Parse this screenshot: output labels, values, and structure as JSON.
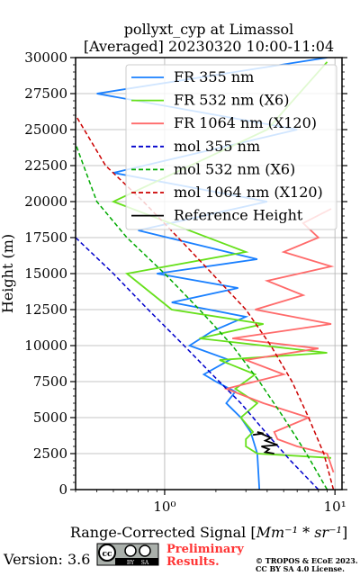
{
  "chart_data": {
    "type": "line",
    "title": "pollyxt_cyp at Limassol",
    "subtitle": "[Averaged] 20230320 10:00-11:04",
    "xlabel_prefix": "Range-Corrected Signal [",
    "xlabel_math": "Mm⁻¹ * sr⁻¹",
    "xlabel_suffix": "]",
    "ylabel": "Height (m)",
    "xscale": "log",
    "xlim": [
      0.3,
      11
    ],
    "ylim": [
      0,
      30000
    ],
    "x_ticks": [
      {
        "value": 1,
        "label": "10⁰"
      },
      {
        "value": 10,
        "label": "10¹"
      }
    ],
    "y_ticks": [
      0,
      2500,
      5000,
      7500,
      10000,
      12500,
      15000,
      17500,
      20000,
      22500,
      25000,
      27500,
      30000
    ],
    "y_tick_labels": [
      "0",
      "2500",
      "5000",
      "7500",
      "10000",
      "12500",
      "15000",
      "17500",
      "20000",
      "22500",
      "25000",
      "27500",
      "30000"
    ],
    "grid": true,
    "legend_placement": "top-right",
    "series": [
      {
        "name": "FR 355 nm",
        "color": "#1a80ff",
        "style": "solid",
        "x": [
          3.6,
          3.5,
          3.2,
          2.8,
          2.3,
          2.6,
          2.0,
          1.7,
          2.4,
          1.4,
          1.9,
          3.0,
          1.1,
          2.7,
          0.9,
          3.5,
          0.7,
          4.0,
          0.5,
          6.0,
          0.4,
          9.0
        ],
        "y": [
          0,
          2500,
          4000,
          5000,
          6000,
          6800,
          7500,
          8000,
          9000,
          10000,
          11000,
          12000,
          13000,
          14000,
          15000,
          16000,
          18000,
          20000,
          22000,
          25000,
          27500,
          30000
        ]
      },
      {
        "name": "FR 532 nm (X6)",
        "color": "#66e01a",
        "style": "solid",
        "x": [
          9.5,
          3.5,
          3.0,
          3.0,
          3.3,
          2.8,
          3.5,
          2.6,
          3.4,
          2.1,
          9.0,
          1.6,
          3.8,
          1.1,
          0.6,
          3.0,
          0.5,
          4.0,
          9.0
        ],
        "y": [
          2200,
          2500,
          3000,
          3500,
          4000,
          5000,
          6000,
          7000,
          8000,
          9000,
          9500,
          10500,
          11500,
          12500,
          15000,
          16500,
          20000,
          25000,
          29700
        ]
      },
      {
        "name": "FR 1064 nm (X120)",
        "color": "#ff6a6a",
        "style": "solid",
        "x": [
          9.8,
          9.0,
          6.0,
          4.6,
          4.4,
          7.0,
          3.8,
          2.3,
          5.0,
          3.0,
          8.0,
          2.5,
          9.5,
          3.4,
          6.5,
          4.0,
          9.5,
          5.0,
          8.0,
          6.5,
          9.5
        ],
        "y": [
          1200,
          2500,
          3000,
          3500,
          4000,
          5000,
          6000,
          7000,
          8000,
          9000,
          9800,
          10500,
          11500,
          12500,
          13500,
          14500,
          15500,
          16500,
          17500,
          18500,
          19500
        ]
      },
      {
        "name": "mol 355 nm",
        "color": "#0000cc",
        "style": "dashed",
        "x": [
          8.0,
          5.5,
          3.9,
          2.8,
          1.9,
          1.3,
          0.8,
          0.5,
          0.3
        ],
        "y": [
          0,
          2000,
          4000,
          6000,
          8000,
          10000,
          12500,
          15000,
          17500
        ]
      },
      {
        "name": "mol 532 nm (X6)",
        "color": "#00aa00",
        "style": "dashed",
        "x": [
          9.0,
          6.8,
          5.0,
          3.6,
          2.5,
          1.6,
          1.0,
          0.6,
          0.4,
          0.3
        ],
        "y": [
          0,
          2500,
          5000,
          7500,
          10000,
          12500,
          15000,
          17500,
          20000,
          24000
        ]
      },
      {
        "name": "mol 1064 nm (X120)",
        "color": "#cc0000",
        "style": "dashed",
        "x": [
          9.8,
          8.6,
          7.0,
          5.6,
          4.2,
          3.0,
          1.9,
          1.2,
          0.75,
          0.45,
          0.3
        ],
        "y": [
          0,
          2500,
          5000,
          7500,
          10000,
          12500,
          15000,
          17500,
          20000,
          22500,
          26000
        ]
      },
      {
        "name": "Reference Height",
        "color": "#000000",
        "style": "solid",
        "x": [
          3.3,
          3.8,
          3.5,
          4.2,
          3.9,
          4.6,
          3.7,
          4.1,
          3.9,
          4.4
        ],
        "y": [
          3800,
          3900,
          4000,
          3600,
          3400,
          3100,
          3000,
          2800,
          2600,
          2500
        ]
      }
    ]
  },
  "footer": {
    "version": "Version: 3.6",
    "license_badge": [
      "cc",
      "BY",
      "SA"
    ],
    "preliminary_line1": "Preliminary",
    "preliminary_line2": "Results.",
    "copyright_line1": "© TROPOS & ECoE 2023.",
    "copyright_line2": "CC BY SA 4.0 License."
  }
}
